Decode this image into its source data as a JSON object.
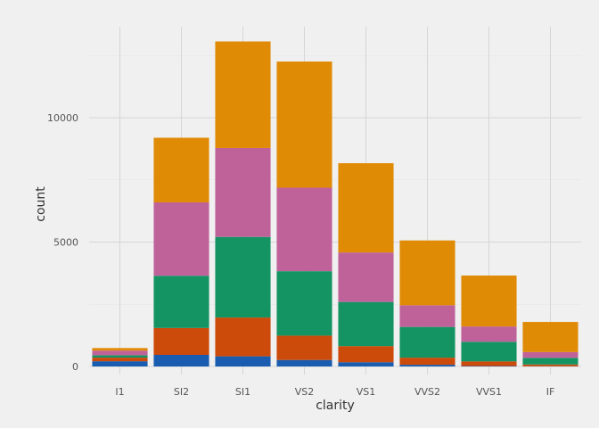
{
  "chart_data": {
    "type": "bar",
    "stacked": true,
    "title": "",
    "xlabel": "clarity",
    "ylabel": "count",
    "categories": [
      "I1",
      "SI2",
      "SI1",
      "VS2",
      "VS1",
      "VVS2",
      "VVS1",
      "IF"
    ],
    "ylim": [
      0,
      13800
    ],
    "yticks": [
      0,
      5000,
      10000
    ],
    "ytick_labels": [
      "0",
      "5000",
      "10000"
    ],
    "grid": true,
    "legend": "none",
    "series": [
      {
        "color": "#1a5cb0",
        "values": [
          210,
          466,
          408,
          261,
          170,
          69,
          17,
          9
        ]
      },
      {
        "color": "#cc4a0a",
        "values": [
          146,
          1081,
          1560,
          978,
          648,
          286,
          186,
          71
        ]
      },
      {
        "color": "#149463",
        "values": [
          96,
          2100,
          3240,
          2591,
          1775,
          1235,
          789,
          268
        ]
      },
      {
        "color": "#c0629a",
        "values": [
          186,
          2949,
          3575,
          3357,
          1989,
          870,
          616,
          230
        ]
      },
      {
        "color": "#e08b06",
        "values": [
          103,
          2598,
          4282,
          5071,
          3589,
          2606,
          2047,
          1212
        ]
      }
    ]
  }
}
